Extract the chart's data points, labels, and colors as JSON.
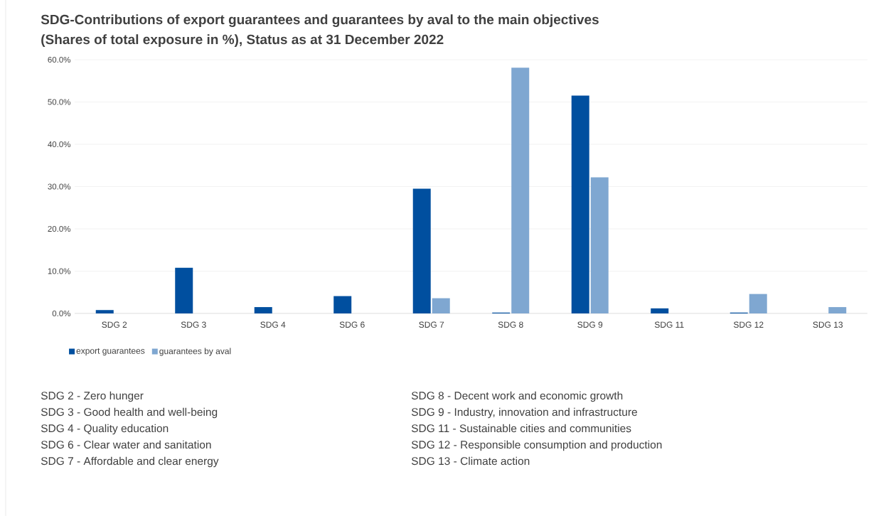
{
  "chart_data": {
    "type": "bar",
    "title": "SDG-Contributions of export guarantees and guarantees by aval to the main objectives",
    "subtitle": "(Shares of total exposure in %), Status as at 31 December 2022",
    "categories": [
      "SDG 2",
      "SDG 3",
      "SDG 4",
      "SDG 6",
      "SDG 7",
      "SDG 8",
      "SDG 9",
      "SDG 11",
      "SDG 12",
      "SDG 13"
    ],
    "series": [
      {
        "name": "export guarantees",
        "color": "#004f9f",
        "values": [
          0.8,
          10.8,
          1.5,
          4.1,
          29.5,
          0.2,
          51.5,
          1.2,
          0.2,
          0
        ]
      },
      {
        "name": "guarantees by aval",
        "color": "#7fa7d1",
        "values": [
          0,
          0,
          0,
          0,
          3.6,
          58.1,
          32.2,
          0,
          4.6,
          1.5
        ]
      }
    ],
    "ylim": [
      0,
      60
    ],
    "yticks": [
      {
        "value": 0,
        "label": "0.0%"
      },
      {
        "value": 10,
        "label": "10.0%"
      },
      {
        "value": 20,
        "label": "20.0%"
      },
      {
        "value": 30,
        "label": "30.0%"
      },
      {
        "value": 40,
        "label": "40.0%"
      },
      {
        "value": 50,
        "label": "50.0%"
      },
      {
        "value": 60,
        "label": "60.0%"
      }
    ],
    "grid": "y",
    "legend": "bottom left",
    "annotations": [
      "SDG 2 - Zero hunger",
      "SDG 3 - Good health and well-being",
      "SDG 4 - Quality education",
      "SDG 6 - Clear water and sanitation",
      "SDG 7 - Affordable and clear energy",
      "SDG 8 - Decent work and economic growth",
      "SDG 9 - Industry, innovation and infrastructure",
      "SDG 11 - Sustainable cities and communities",
      "SDG 12 - Responsible consumption and production",
      "SDG 13 - Climate action"
    ]
  }
}
